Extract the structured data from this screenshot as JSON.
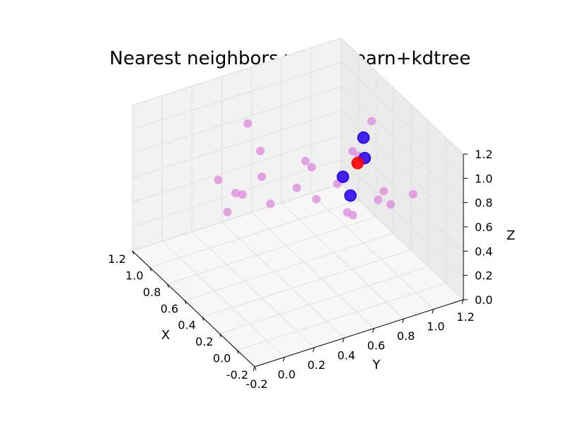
{
  "chart_data": {
    "type": "scatter",
    "title": "Nearest neighbors with sklearn+kdtree",
    "xlabel": "X",
    "ylabel": "Y",
    "zlabel": "Z",
    "xlim": [
      -0.2,
      1.2
    ],
    "ylim": [
      -0.2,
      1.2
    ],
    "zlim": [
      0.0,
      1.2
    ],
    "grid": true,
    "x_ticks": [
      "-0.2",
      "0.0",
      "0.2",
      "0.4",
      "0.6",
      "0.8",
      "1.0",
      "1.2"
    ],
    "y_ticks": [
      "-0.2",
      "0.0",
      "0.2",
      "0.4",
      "0.6",
      "0.8",
      "1.0",
      "1.2"
    ],
    "z_ticks": [
      "0.0",
      "0.2",
      "0.4",
      "0.6",
      "0.8",
      "1.0",
      "1.2"
    ],
    "series": [
      {
        "color": "#dd88dd",
        "points": [
          [
            0.05,
            0.36,
            0.99
          ],
          [
            0.3,
            0.75,
            1.06
          ],
          [
            0.12,
            1.05,
            0.71
          ],
          [
            0.68,
            1.1,
            0.91
          ],
          [
            0.64,
            0.11,
            0.58
          ],
          [
            0.9,
            0.2,
            0.63
          ],
          [
            0.64,
            0.34,
            0.78
          ],
          [
            1.04,
            0.48,
            0.89
          ],
          [
            0.7,
            0.71,
            0.67
          ],
          [
            0.58,
            0.54,
            0.65
          ],
          [
            0.93,
            0.38,
            0.42
          ],
          [
            0.82,
            0.27,
            0.55
          ],
          [
            0.39,
            0.7,
            0.75
          ],
          [
            0.5,
            0.91,
            0.82
          ],
          [
            0.83,
            0.51,
            0.36
          ],
          [
            0.29,
            1.0,
            0.53
          ],
          [
            0.52,
            1.05,
            0.39
          ],
          [
            0.2,
            0.9,
            0.74
          ],
          [
            0.4,
            0.81,
            0.44
          ],
          [
            0.19,
            0.65,
            0.67
          ],
          [
            0.72,
            0.68,
            0.72
          ],
          [
            1.15,
            0.63,
            0.53
          ]
        ]
      },
      {
        "color": "#2200ee",
        "points": [
          [
            0.36,
            0.72,
            0.82
          ],
          [
            0.4,
            0.89,
            0.88
          ],
          [
            0.41,
            0.8,
            0.6
          ],
          [
            0.38,
            0.87,
            1.07
          ]
        ]
      },
      {
        "color": "#ff0000",
        "points": [
          [
            0.43,
            0.86,
            0.83
          ]
        ]
      }
    ]
  }
}
